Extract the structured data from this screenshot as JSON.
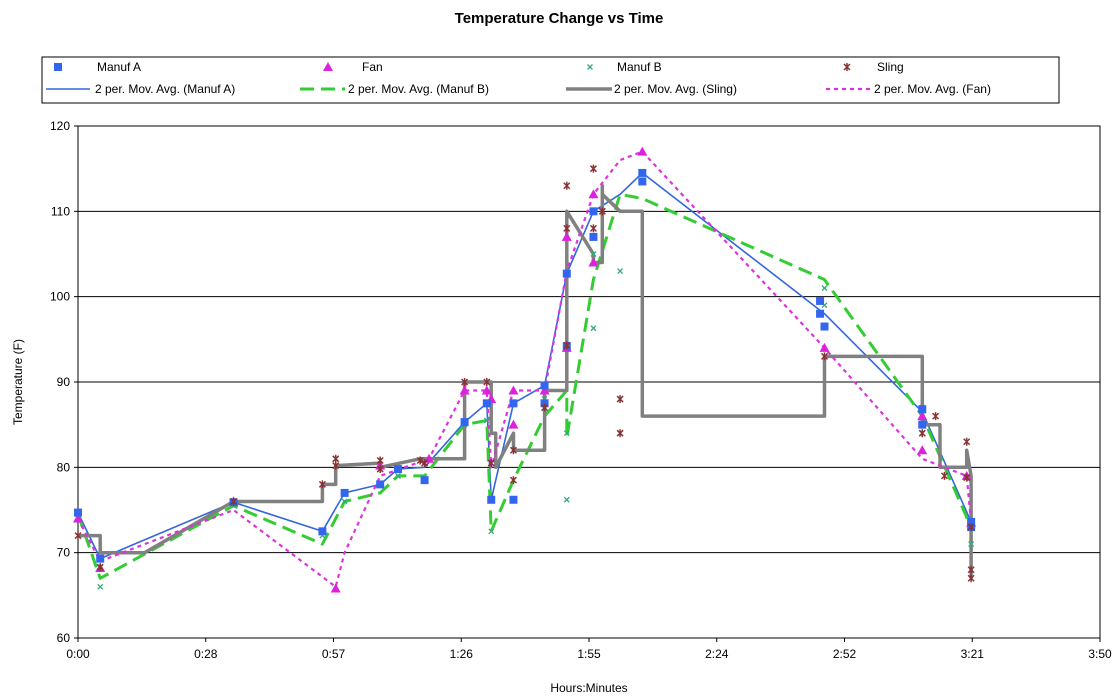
{
  "chart_data": {
    "type": "scatter",
    "title": "Temperature Change vs Time",
    "xlabel": "Hours:Minutes",
    "ylabel": "Temperature (F)",
    "xlim": [
      0,
      230
    ],
    "ylim": [
      60,
      120
    ],
    "x_ticks": [
      "0:00",
      "0:28",
      "0:57",
      "1:26",
      "1:55",
      "2:24",
      "2:52",
      "3:21",
      "3:50"
    ],
    "y_ticks": [
      60,
      70,
      80,
      90,
      100,
      110,
      120
    ],
    "grid": "horizontal",
    "legend_position": "top",
    "series": [
      {
        "name": "Manuf A",
        "kind": "markers",
        "marker": "square",
        "color": "#3366ee",
        "x": [
          0,
          5,
          35,
          55,
          60,
          68,
          72,
          78,
          87,
          92,
          93,
          98,
          98,
          105,
          105,
          110,
          110,
          116,
          116,
          127,
          127,
          167,
          167,
          168,
          190,
          190,
          201,
          201
        ],
        "y": [
          74.7,
          69.3,
          75.9,
          72.5,
          77,
          78,
          79.8,
          78.5,
          85.3,
          87.5,
          76.2,
          87.5,
          76.2,
          89.6,
          87.5,
          94.2,
          102.7,
          110,
          107,
          114.5,
          113.5,
          98,
          99.5,
          96.5,
          86.8,
          85,
          73,
          73.6
        ]
      },
      {
        "name": "Fan",
        "kind": "markers",
        "marker": "triangle",
        "color": "#dd22dd",
        "x": [
          0,
          5,
          35,
          58,
          68,
          79,
          87,
          92,
          93,
          98,
          98,
          105,
          110,
          110,
          116,
          116,
          127,
          168,
          190,
          190,
          200,
          201
        ],
        "y": [
          74,
          68.2,
          76,
          65.8,
          80.2,
          81,
          89,
          89,
          88,
          89,
          85,
          89,
          107,
          94,
          112,
          104,
          117,
          94,
          86,
          82,
          79,
          73.5
        ]
      },
      {
        "name": "Manuf B",
        "kind": "markers",
        "marker": "x",
        "color": "#33aa77",
        "x": [
          0,
          5,
          35,
          55,
          60,
          68,
          72,
          78,
          87,
          92,
          93,
          98,
          105,
          110,
          110,
          116,
          116,
          122,
          168,
          168,
          190,
          190,
          201,
          201
        ],
        "y": [
          74.5,
          66,
          76,
          72,
          76,
          78,
          79,
          78.5,
          85,
          85.5,
          72.5,
          78.5,
          88,
          76.2,
          84,
          105,
          96.3,
          103,
          101,
          99,
          87,
          84,
          73,
          71
        ]
      },
      {
        "name": "Sling",
        "kind": "markers",
        "marker": "star",
        "color": "#883333",
        "x": [
          0,
          5,
          35,
          55,
          58,
          58,
          68,
          68,
          77,
          78,
          87,
          92,
          93,
          98,
          98,
          105,
          110,
          110,
          110,
          116,
          116,
          118,
          122,
          122,
          168,
          190,
          193,
          195,
          200,
          200,
          201,
          201,
          201
        ],
        "y": [
          72,
          68.3,
          76,
          78,
          81,
          80.2,
          80.8,
          79.8,
          80.8,
          80.5,
          90,
          90,
          80.5,
          82,
          78.5,
          87,
          113,
          108,
          94.3,
          115,
          108,
          110,
          88,
          84,
          93,
          84,
          86,
          79,
          83,
          78.8,
          73,
          67,
          68
        ]
      },
      {
        "name": "2 per. Mov. Avg. (Manuf A)",
        "kind": "line",
        "color": "#3366dd",
        "width": 1.6,
        "dash": "",
        "x": [
          0,
          5,
          35,
          55,
          60,
          68,
          72,
          78,
          87,
          92,
          93,
          98,
          105,
          110,
          116,
          122,
          127,
          168,
          190,
          201
        ],
        "y": [
          74.7,
          69.3,
          75.9,
          72.5,
          77,
          78,
          79.8,
          80,
          85.3,
          87.5,
          76.2,
          87.5,
          89.6,
          102.7,
          110,
          112,
          114.5,
          98,
          86.5,
          73.6
        ]
      },
      {
        "name": "2 per. Mov. Avg. (Manuf B)",
        "kind": "line",
        "color": "#33cc33",
        "width": 3,
        "dash": "14,7",
        "x": [
          0,
          5,
          35,
          55,
          60,
          68,
          72,
          78,
          87,
          92,
          93,
          98,
          105,
          110,
          110,
          116,
          122,
          127,
          168,
          190,
          201
        ],
        "y": [
          74.5,
          67,
          75.5,
          71,
          76,
          77,
          79,
          79,
          85,
          85.5,
          72.5,
          78.5,
          86,
          89,
          83.5,
          102,
          112,
          111.5,
          102,
          86,
          73
        ]
      },
      {
        "name": "2 per. Mov. Avg. (Sling)",
        "kind": "line",
        "color": "#808080",
        "width": 3.5,
        "dash": "",
        "x": [
          0,
          5,
          5,
          15,
          15,
          35,
          35,
          55,
          55,
          58,
          58,
          68,
          68,
          77,
          77,
          87,
          87,
          93,
          93,
          94,
          94,
          98,
          98,
          105,
          105,
          110,
          110,
          110,
          116,
          116,
          118,
          118,
          118,
          122,
          127,
          127,
          168,
          168,
          190,
          190,
          190,
          194,
          194,
          200,
          200,
          201,
          201
        ],
        "y": [
          72,
          72,
          70,
          70,
          70,
          76,
          76,
          76,
          78,
          78,
          80.2,
          80.5,
          80,
          81,
          81,
          81,
          90,
          90,
          84,
          84,
          80,
          84,
          82,
          82,
          89,
          89,
          89,
          110,
          105,
          104,
          104,
          113,
          112,
          110,
          110,
          86,
          86,
          93,
          93,
          93,
          85,
          85,
          80,
          80,
          82,
          79,
          67
        ]
      },
      {
        "name": "2 per. Mov. Avg. (Fan)",
        "kind": "line",
        "color": "#dd33dd",
        "width": 2.2,
        "dash": "4,4",
        "x": [
          0,
          5,
          35,
          58,
          60,
          68,
          79,
          87,
          92,
          93,
          98,
          105,
          110,
          116,
          122,
          127,
          168,
          190,
          200,
          201
        ],
        "y": [
          74,
          69,
          75,
          66,
          70,
          79,
          81,
          89,
          89,
          80,
          89,
          89,
          103,
          112,
          116,
          117,
          94,
          81,
          79,
          73.5
        ]
      }
    ]
  }
}
